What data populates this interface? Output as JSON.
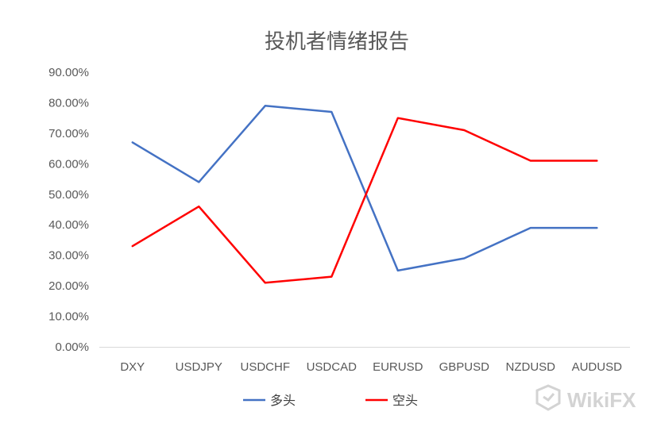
{
  "chart_data": {
    "type": "line",
    "title": "投机者情绪报告",
    "categories": [
      "DXY",
      "USDJPY",
      "USDCHF",
      "USDCAD",
      "EURUSD",
      "GBPUSD",
      "NZDUSD",
      "AUDUSD"
    ],
    "series": [
      {
        "name": "多头",
        "color": "#4472C4",
        "values": [
          67,
          54,
          79,
          77,
          25,
          29,
          39,
          39
        ]
      },
      {
        "name": "空头",
        "color": "#FF0000",
        "values": [
          33,
          46,
          21,
          23,
          75,
          71,
          61,
          61
        ]
      }
    ],
    "ylim": [
      0,
      90
    ],
    "y_ticks": [
      "0.00%",
      "10.00%",
      "20.00%",
      "30.00%",
      "40.00%",
      "50.00%",
      "60.00%",
      "70.00%",
      "80.00%",
      "90.00%"
    ],
    "ytick_step": 10,
    "grid": false,
    "legend_position": "bottom"
  },
  "watermark": {
    "text": "WikiFX",
    "icon": "wikifx-logo-icon"
  }
}
